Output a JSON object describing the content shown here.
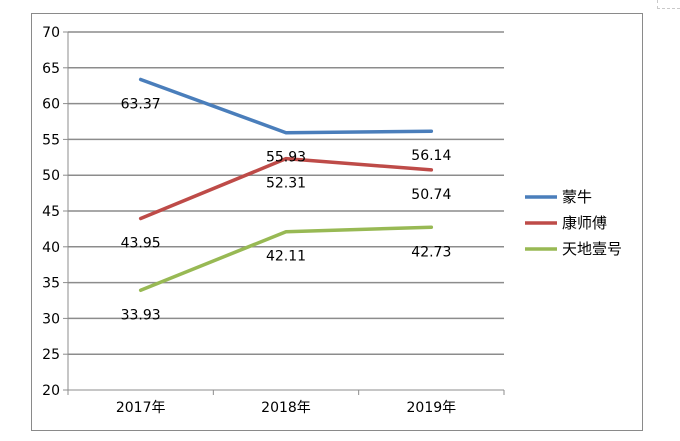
{
  "chart_data": {
    "type": "line",
    "categories": [
      "2017年",
      "2018年",
      "2019年"
    ],
    "series": [
      {
        "name": "蒙牛",
        "values": [
          63.37,
          55.93,
          56.14
        ],
        "color": "#4a7ebb"
      },
      {
        "name": "康师傅",
        "values": [
          43.95,
          52.31,
          50.74
        ],
        "color": "#be4b48"
      },
      {
        "name": "天地壹号",
        "values": [
          33.93,
          42.11,
          42.73
        ],
        "color": "#98b954"
      }
    ],
    "ylim": [
      20,
      70
    ],
    "yticks": [
      "20",
      "25",
      "30",
      "35",
      "40",
      "45",
      "50",
      "55",
      "60",
      "65",
      "70"
    ],
    "grid": true,
    "legend": "right",
    "data_labels": true
  }
}
